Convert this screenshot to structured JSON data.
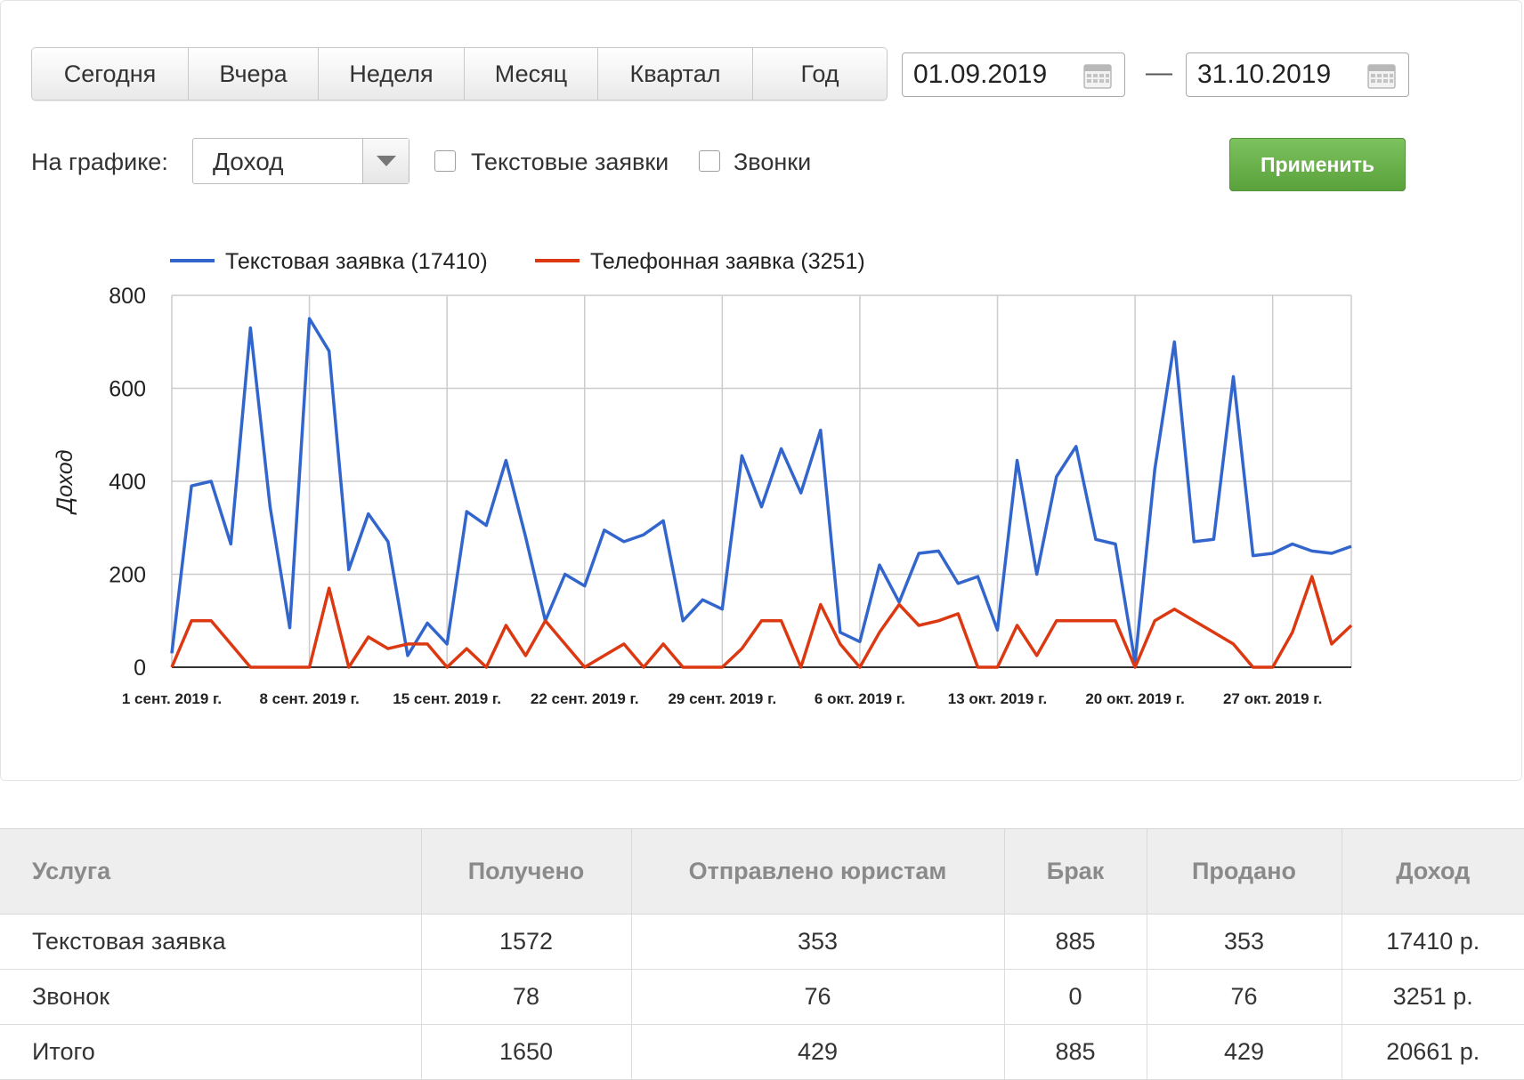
{
  "periods": [
    "Сегодня",
    "Вчера",
    "Неделя",
    "Месяц",
    "Квартал",
    "Год"
  ],
  "date_from": "01.09.2019",
  "date_separator": "—",
  "date_to": "31.10.2019",
  "on_chart_label": "На графике:",
  "metric_select": "Доход",
  "checkbox_text_requests": "Текстовые заявки",
  "checkbox_calls": "Звонки",
  "apply_label": "Применить",
  "colors": {
    "blue": "#3366cc",
    "red": "#dc3912",
    "apply": "#6ab04c"
  },
  "chart_data": {
    "type": "line",
    "ylabel": "Доход",
    "ylim": [
      0,
      800
    ],
    "y_ticks": [
      "0",
      "200",
      "400",
      "600",
      "800"
    ],
    "x_tick_labels": [
      "1 сент. 2019 г.",
      "8 сент. 2019 г.",
      "15 сент. 2019 г.",
      "22 сент. 2019 г.",
      "29 сент. 2019 г.",
      "6 окт. 2019 г.",
      "13 окт. 2019 г.",
      "20 окт. 2019 г.",
      "27 окт. 2019 г."
    ],
    "x_tick_days": [
      0,
      7,
      14,
      21,
      28,
      35,
      42,
      49,
      56
    ],
    "legend_position": "top",
    "grid": true,
    "series": [
      {
        "name": "Текстовая заявка (17410)",
        "color": "#3366cc",
        "values": [
          30,
          390,
          400,
          265,
          730,
          345,
          85,
          750,
          680,
          210,
          330,
          270,
          25,
          95,
          50,
          335,
          305,
          445,
          280,
          100,
          200,
          175,
          295,
          270,
          285,
          315,
          100,
          145,
          125,
          455,
          345,
          470,
          375,
          510,
          75,
          55,
          220,
          140,
          245,
          250,
          180,
          195,
          80,
          445,
          200,
          410,
          475,
          275,
          265,
          10,
          425,
          700,
          270,
          275,
          625,
          240,
          245,
          265,
          250,
          245,
          260
        ]
      },
      {
        "name": "Телефонная заявка (3251)",
        "color": "#dc3912",
        "values": [
          0,
          100,
          100,
          50,
          0,
          0,
          0,
          0,
          170,
          0,
          65,
          40,
          50,
          50,
          0,
          40,
          0,
          90,
          25,
          100,
          50,
          0,
          25,
          50,
          0,
          50,
          0,
          0,
          0,
          40,
          100,
          100,
          0,
          135,
          50,
          0,
          75,
          135,
          90,
          100,
          115,
          0,
          0,
          90,
          25,
          100,
          100,
          100,
          100,
          0,
          100,
          125,
          100,
          75,
          50,
          0,
          0,
          75,
          195,
          50,
          90
        ]
      }
    ]
  },
  "table": {
    "headers": [
      "Услуга",
      "Получено",
      "Отправлено юристам",
      "Брак",
      "Продано",
      "Доход"
    ],
    "rows": [
      [
        "Текстовая заявка",
        "1572",
        "353",
        "885",
        "353",
        "17410 р."
      ],
      [
        "Звонок",
        "78",
        "76",
        "0",
        "76",
        "3251 р."
      ],
      [
        "Итого",
        "1650",
        "429",
        "885",
        "429",
        "20661 р."
      ]
    ]
  }
}
